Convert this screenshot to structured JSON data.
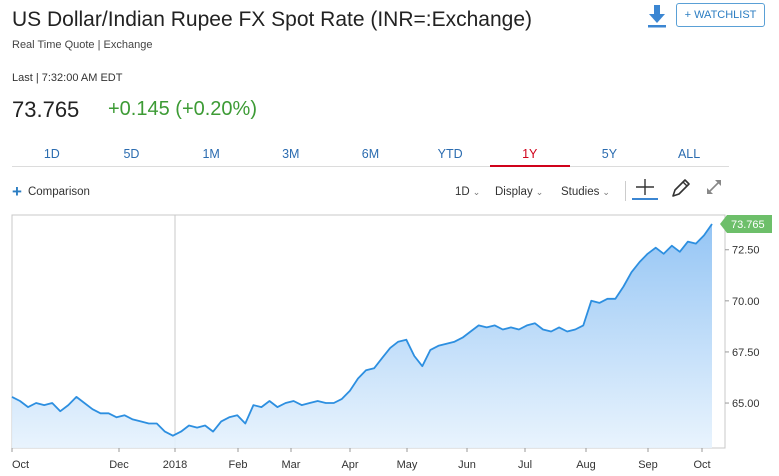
{
  "header": {
    "title": "US Dollar/Indian Rupee FX Spot Rate (INR=:Exchange)",
    "subtitle": "Real Time Quote | Exchange",
    "last_time": "Last | 7:32:00 AM EDT",
    "price": "73.765",
    "change": "+0.145 (+0.20%)",
    "change_color": "#3d9b35",
    "watchlist_label": "+ WATCHLIST",
    "download_icon": "download-icon"
  },
  "tabs": [
    {
      "label": "1D",
      "active": false
    },
    {
      "label": "5D",
      "active": false
    },
    {
      "label": "1M",
      "active": false
    },
    {
      "label": "3M",
      "active": false
    },
    {
      "label": "6M",
      "active": false
    },
    {
      "label": "YTD",
      "active": false
    },
    {
      "label": "1Y",
      "active": true
    },
    {
      "label": "5Y",
      "active": false
    },
    {
      "label": "ALL",
      "active": false
    }
  ],
  "toolbar": {
    "comparison_label": "Comparison",
    "interval_label": "1D",
    "display_label": "Display",
    "studies_label": "Studies",
    "tools": [
      "crosshair-icon",
      "pencil-icon",
      "expand-icon"
    ]
  },
  "chart_data": {
    "type": "area",
    "line_color": "#2d8fe0",
    "fill_color": "#a8d1f7",
    "y_ticks": [
      "65.00",
      "67.50",
      "70.00",
      "72.50"
    ],
    "x_ticks": [
      "Oct",
      "Dec",
      "2018",
      "Feb",
      "Mar",
      "Apr",
      "May",
      "Jun",
      "Jul",
      "Aug",
      "Sep",
      "Oct"
    ],
    "ylim": [
      62.8,
      74.2
    ],
    "last_value_label": "73.765",
    "last_value_color": "#6dbf6a",
    "x": [
      0,
      1,
      2,
      3,
      4,
      5,
      6,
      7,
      8,
      9,
      10,
      11,
      12,
      13,
      14,
      15,
      16,
      17,
      18,
      19,
      20,
      21,
      22,
      23,
      24,
      25,
      26,
      27,
      28,
      29,
      30,
      31,
      32,
      33,
      34,
      35,
      36,
      37,
      38,
      39,
      40,
      41,
      42,
      43,
      44,
      45,
      46,
      47,
      48,
      49,
      50,
      51,
      52,
      53,
      54,
      55,
      56,
      57,
      58,
      59,
      60,
      61,
      62,
      63,
      64,
      65,
      66,
      67,
      68,
      69,
      70,
      71,
      72,
      73,
      74,
      75,
      76,
      77,
      78,
      79,
      80,
      81,
      82,
      83,
      84,
      85,
      86,
      87
    ],
    "values": [
      65.3,
      65.1,
      64.8,
      65.0,
      64.9,
      65.0,
      64.6,
      64.9,
      65.3,
      65.0,
      64.7,
      64.5,
      64.5,
      64.3,
      64.4,
      64.2,
      64.1,
      64.0,
      64.0,
      63.6,
      63.4,
      63.6,
      63.9,
      63.8,
      63.9,
      63.6,
      64.1,
      64.3,
      64.4,
      64.0,
      64.9,
      64.8,
      65.1,
      64.8,
      65.0,
      65.1,
      64.9,
      65.0,
      65.1,
      65.0,
      65.0,
      65.2,
      65.6,
      66.2,
      66.6,
      66.7,
      67.2,
      67.7,
      68.0,
      68.1,
      67.3,
      66.8,
      67.6,
      67.8,
      67.9,
      68.0,
      68.2,
      68.5,
      68.8,
      68.7,
      68.8,
      68.6,
      68.7,
      68.6,
      68.8,
      68.9,
      68.6,
      68.5,
      68.7,
      68.5,
      68.6,
      68.8,
      70.0,
      69.9,
      70.1,
      70.1,
      70.7,
      71.4,
      71.9,
      72.3,
      72.6,
      72.3,
      72.7,
      72.4,
      72.9,
      72.8,
      73.2,
      73.76
    ]
  }
}
